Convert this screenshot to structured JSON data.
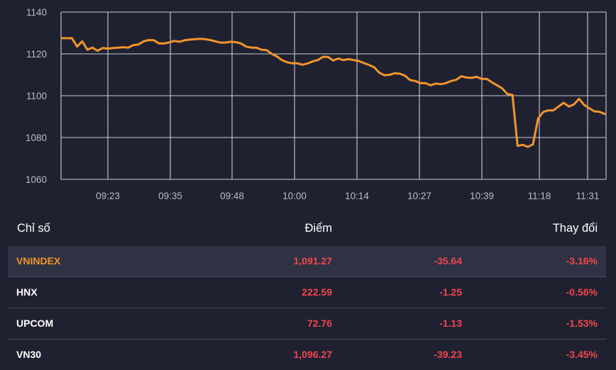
{
  "chart_data": {
    "type": "line",
    "y_ticks": [
      1140,
      1120,
      1100,
      1080,
      1060
    ],
    "ylim": [
      1060,
      1140
    ],
    "x_tick_labels": [
      "09:23",
      "09:35",
      "09:48",
      "10:00",
      "10:14",
      "10:27",
      "10:39",
      "11:18",
      "11:31"
    ],
    "grid": true,
    "line_color": "#f2952c",
    "series": [
      {
        "values": [
          1127.5,
          1127.5,
          1127.5,
          1123.5,
          1126.0,
          1122.0,
          1123.0,
          1121.5,
          1122.8,
          1122.5,
          1122.8,
          1123.0,
          1123.2,
          1123.0,
          1124.2,
          1124.5,
          1126.0,
          1126.6,
          1126.5,
          1125.0,
          1125.0,
          1125.5,
          1126.2,
          1125.8,
          1126.5,
          1126.8,
          1127.0,
          1127.2,
          1127.0,
          1126.6,
          1126.0,
          1125.4,
          1125.4,
          1125.8,
          1125.6,
          1125.0,
          1123.5,
          1123.0,
          1123.0,
          1122.0,
          1121.8,
          1120.0,
          1118.8,
          1117.0,
          1116.0,
          1115.5,
          1115.5,
          1114.8,
          1115.4,
          1116.4,
          1117.0,
          1118.6,
          1118.5,
          1116.8,
          1117.8,
          1117.0,
          1117.5,
          1117.0,
          1116.6,
          1115.6,
          1114.7,
          1113.6,
          1111.0,
          1109.8,
          1110.0,
          1110.7,
          1110.5,
          1109.6,
          1107.5,
          1107.0,
          1106.0,
          1106.0,
          1105.0,
          1105.8,
          1105.5,
          1106.0,
          1107.0,
          1107.6,
          1109.3,
          1108.7,
          1108.5,
          1109.0,
          1108.0,
          1108.0,
          1106.4,
          1105.0,
          1103.5,
          1100.8,
          1100.4,
          1076.0,
          1076.5,
          1075.5,
          1076.7,
          1089.0,
          1092.2,
          1093.0,
          1093.0,
          1094.8,
          1096.6,
          1094.8,
          1095.8,
          1098.5,
          1095.6,
          1094.0,
          1092.5,
          1092.3,
          1091.27
        ]
      }
    ]
  },
  "table": {
    "headers": [
      "Chỉ số",
      "Điểm",
      "",
      "Thay đổi"
    ],
    "rows": [
      {
        "name": "VNINDEX",
        "value": "1,091.27",
        "change": "-35.64",
        "pct": "-3.16%"
      },
      {
        "name": "HNX",
        "value": "222.59",
        "change": "-1.25",
        "pct": "-0.56%"
      },
      {
        "name": "UPCOM",
        "value": "72.76",
        "change": "-1.13",
        "pct": "-1.53%"
      },
      {
        "name": "VN30",
        "value": "1,096.27",
        "change": "-39.23",
        "pct": "-3.45%"
      }
    ]
  }
}
